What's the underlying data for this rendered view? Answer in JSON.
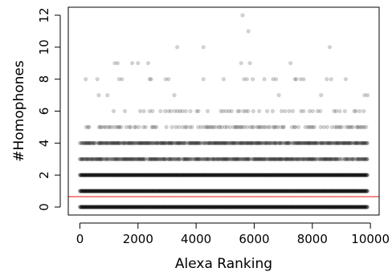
{
  "chart_data": {
    "type": "scatter",
    "title": "",
    "xlabel": "Alexa Ranking",
    "ylabel": "#Homophones",
    "xlim": [
      -400,
      10300
    ],
    "ylim": [
      -0.5,
      12.5
    ],
    "x_ticks": [
      0,
      2000,
      4000,
      6000,
      8000,
      10000
    ],
    "x_tick_labels": [
      "0",
      "2000",
      "4000",
      "6000",
      "8000",
      "10000"
    ],
    "y_ticks": [
      0,
      2,
      4,
      6,
      8,
      10,
      12
    ],
    "y_tick_labels": [
      "0",
      "2",
      "4",
      "6",
      "8",
      "10",
      "12"
    ],
    "grid": false,
    "point_color": "#000000",
    "point_alpha": 0.18,
    "reference_line": {
      "y": 0.65,
      "color": "#e8413c"
    },
    "series": [
      {
        "values_by_y": [
          {
            "y": 0,
            "x_from": 0,
            "x_to": 9900,
            "density": "continuous"
          },
          {
            "y": 1,
            "x_from": 0,
            "x_to": 9900,
            "density": "continuous"
          },
          {
            "y": 2,
            "x_from": 0,
            "x_to": 9900,
            "density": "continuous"
          },
          {
            "y": 3,
            "x_from": 0,
            "x_to": 9900,
            "density": "dense"
          },
          {
            "y": 4,
            "x_from": 0,
            "x_to": 9900,
            "density": "dense"
          },
          {
            "y": 5,
            "x_from": 50,
            "x_to": 9900,
            "density": "medium"
          },
          {
            "y": 6,
            "x_from": 1150,
            "x_to": 9900,
            "density": "sparse"
          }
        ],
        "sparse_points": [
          {
            "x": 200,
            "y": 8
          },
          {
            "x": 600,
            "y": 8
          },
          {
            "x": 650,
            "y": 7
          },
          {
            "x": 950,
            "y": 7
          },
          {
            "x": 1200,
            "y": 9
          },
          {
            "x": 1300,
            "y": 9
          },
          {
            "x": 1350,
            "y": 8
          },
          {
            "x": 1450,
            "y": 8
          },
          {
            "x": 1800,
            "y": 9
          },
          {
            "x": 2000,
            "y": 9
          },
          {
            "x": 2350,
            "y": 9
          },
          {
            "x": 2400,
            "y": 8
          },
          {
            "x": 2450,
            "y": 8
          },
          {
            "x": 2950,
            "y": 8
          },
          {
            "x": 3050,
            "y": 8
          },
          {
            "x": 3250,
            "y": 7
          },
          {
            "x": 3350,
            "y": 10
          },
          {
            "x": 3450,
            "y": 6
          },
          {
            "x": 4250,
            "y": 10
          },
          {
            "x": 4250,
            "y": 8
          },
          {
            "x": 4950,
            "y": 8
          },
          {
            "x": 5550,
            "y": 9
          },
          {
            "x": 5600,
            "y": 12
          },
          {
            "x": 5650,
            "y": 8
          },
          {
            "x": 5750,
            "y": 8
          },
          {
            "x": 5800,
            "y": 11
          },
          {
            "x": 5850,
            "y": 9
          },
          {
            "x": 5950,
            "y": 8
          },
          {
            "x": 6350,
            "y": 8
          },
          {
            "x": 6650,
            "y": 8
          },
          {
            "x": 6750,
            "y": 8
          },
          {
            "x": 6850,
            "y": 7
          },
          {
            "x": 7250,
            "y": 9
          },
          {
            "x": 7400,
            "y": 8
          },
          {
            "x": 7450,
            "y": 8
          },
          {
            "x": 7600,
            "y": 8
          },
          {
            "x": 7700,
            "y": 8
          },
          {
            "x": 8300,
            "y": 7
          },
          {
            "x": 8500,
            "y": 8
          },
          {
            "x": 8600,
            "y": 10
          },
          {
            "x": 8650,
            "y": 8
          },
          {
            "x": 9150,
            "y": 8
          },
          {
            "x": 9800,
            "y": 7
          },
          {
            "x": 9900,
            "y": 7
          }
        ]
      }
    ]
  }
}
